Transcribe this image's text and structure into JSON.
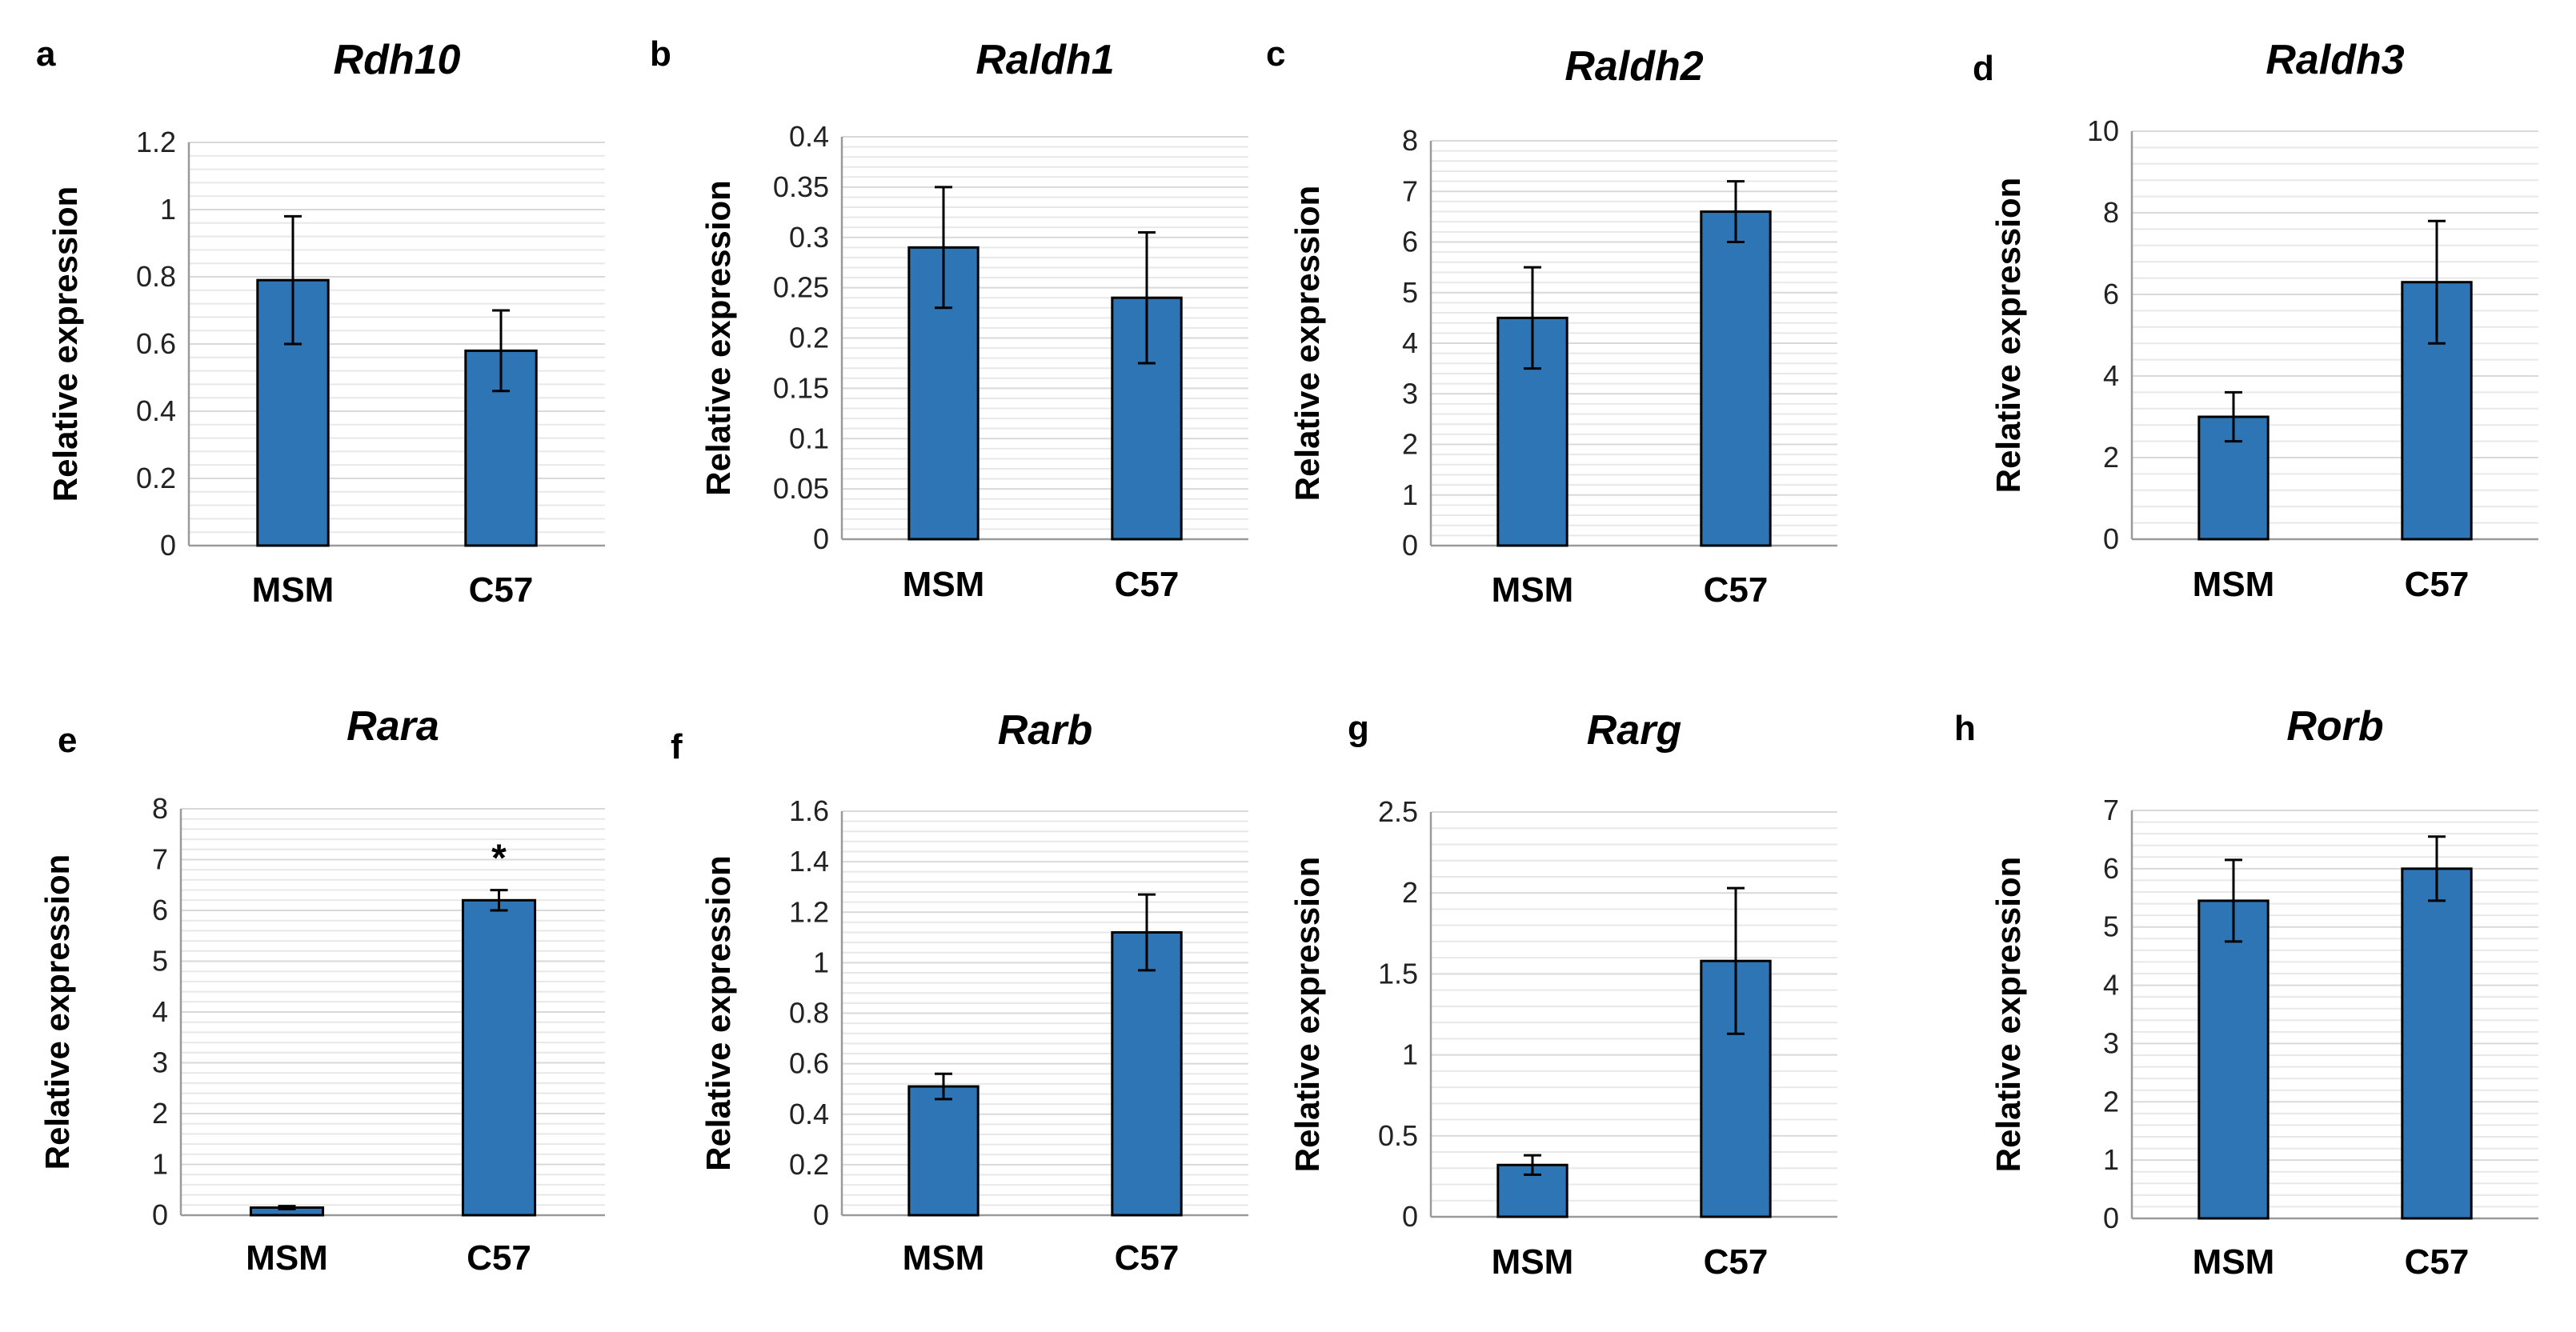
{
  "chart_data": [
    {
      "type": "bar",
      "panel": "a",
      "title": "Rdh10",
      "ylabel": "Relative expression",
      "categories": [
        "MSM",
        "C57"
      ],
      "values": [
        0.79,
        0.58
      ],
      "errors": [
        0.19,
        0.12
      ],
      "ylim": [
        0,
        1.2
      ],
      "yticks": [
        "0",
        "0.2",
        "0.4",
        "0.6",
        "0.8",
        "1",
        "1.2"
      ],
      "annotations": []
    },
    {
      "type": "bar",
      "panel": "b",
      "title": "Raldh1",
      "ylabel": "Relative expression",
      "categories": [
        "MSM",
        "C57"
      ],
      "values": [
        0.29,
        0.24
      ],
      "errors": [
        0.06,
        0.065
      ],
      "ylim": [
        0,
        0.4
      ],
      "yticks": [
        "0",
        "0.05",
        "0.1",
        "0.15",
        "0.2",
        "0.25",
        "0.3",
        "0.35",
        "0.4"
      ],
      "annotations": []
    },
    {
      "type": "bar",
      "panel": "c",
      "title": "Raldh2",
      "ylabel": "Relative expression",
      "categories": [
        "MSM",
        "C57"
      ],
      "values": [
        4.5,
        6.6
      ],
      "errors": [
        1.0,
        0.6
      ],
      "ylim": [
        0,
        8
      ],
      "yticks": [
        "0",
        "1",
        "2",
        "3",
        "4",
        "5",
        "6",
        "7",
        "8"
      ],
      "annotations": []
    },
    {
      "type": "bar",
      "panel": "d",
      "title": "Raldh3",
      "ylabel": "Relative expression",
      "categories": [
        "MSM",
        "C57"
      ],
      "values": [
        3.0,
        6.3
      ],
      "errors": [
        0.6,
        1.5
      ],
      "ylim": [
        0,
        10
      ],
      "yticks": [
        "0",
        "2",
        "4",
        "6",
        "8",
        "10"
      ],
      "annotations": []
    },
    {
      "type": "bar",
      "panel": "e",
      "title": "Rara",
      "ylabel": "Relative expression",
      "categories": [
        "MSM",
        "C57"
      ],
      "values": [
        0.15,
        6.2
      ],
      "errors": [
        0.03,
        0.2
      ],
      "ylim": [
        0,
        8
      ],
      "yticks": [
        "0",
        "1",
        "2",
        "3",
        "4",
        "5",
        "6",
        "7",
        "8"
      ],
      "annotations": [
        {
          "text": "*",
          "category": "C57"
        }
      ]
    },
    {
      "type": "bar",
      "panel": "f",
      "title": "Rarb",
      "ylabel": "Relative expression",
      "categories": [
        "MSM",
        "C57"
      ],
      "values": [
        0.51,
        1.12
      ],
      "errors": [
        0.05,
        0.15
      ],
      "ylim": [
        0,
        1.6
      ],
      "yticks": [
        "0",
        "0.2",
        "0.4",
        "0.6",
        "0.8",
        "1",
        "1.2",
        "1.4",
        "1.6"
      ],
      "annotations": []
    },
    {
      "type": "bar",
      "panel": "g",
      "title": "Rarg",
      "ylabel": "Relative expression",
      "categories": [
        "MSM",
        "C57"
      ],
      "values": [
        0.32,
        1.58
      ],
      "errors": [
        0.06,
        0.45
      ],
      "ylim": [
        0,
        2.5
      ],
      "yticks": [
        "0",
        "0.5",
        "1",
        "1.5",
        "2",
        "2.5"
      ],
      "annotations": []
    },
    {
      "type": "bar",
      "panel": "h",
      "title": "Rorb",
      "ylabel": "Relative expression",
      "categories": [
        "MSM",
        "C57"
      ],
      "values": [
        5.45,
        6.0
      ],
      "errors": [
        0.7,
        0.55
      ],
      "ylim": [
        0,
        7
      ],
      "yticks": [
        "0",
        "1",
        "2",
        "3",
        "4",
        "5",
        "6",
        "7"
      ],
      "annotations": []
    }
  ]
}
